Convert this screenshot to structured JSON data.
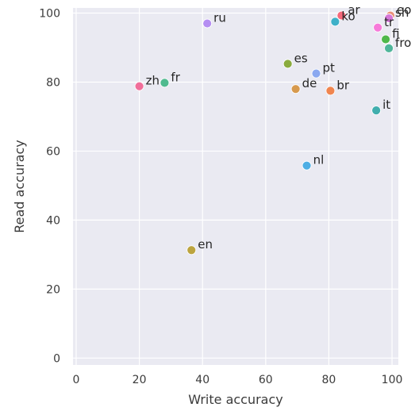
{
  "chart_data": {
    "type": "scatter",
    "xlabel": "Write accuracy",
    "ylabel": "Read accuracy",
    "xlim": [
      -1,
      102
    ],
    "ylim": [
      -2,
      101.5
    ],
    "xticks": [
      0,
      20,
      40,
      60,
      80,
      100
    ],
    "yticks": [
      0,
      20,
      40,
      60,
      80,
      100
    ],
    "grid": true,
    "points": [
      {
        "label": "ar",
        "x": 84.0,
        "y": 99.3,
        "color": "#f5687a"
      },
      {
        "label": "eo",
        "x": 99.5,
        "y": 99.3,
        "color": "#e8907a"
      },
      {
        "label": "sh",
        "x": 99.0,
        "y": 98.5,
        "color": "#d576d8"
      },
      {
        "label": "ru",
        "x": 41.5,
        "y": 97.0,
        "color": "#b58ef2"
      },
      {
        "label": "ko",
        "x": 82.0,
        "y": 97.5,
        "color": "#3eb0c8"
      },
      {
        "label": "tr",
        "x": 95.5,
        "y": 95.8,
        "color": "#f77ad9"
      },
      {
        "label": "fi",
        "x": 98.0,
        "y": 92.4,
        "color": "#4fb84a"
      },
      {
        "label": "fro",
        "x": 99.0,
        "y": 89.8,
        "color": "#4fb59a"
      },
      {
        "label": "es",
        "x": 67.0,
        "y": 85.3,
        "color": "#8aab3e"
      },
      {
        "label": "pt",
        "x": 76.0,
        "y": 82.5,
        "color": "#8aa8f0"
      },
      {
        "label": "zh",
        "x": 20.0,
        "y": 78.8,
        "color": "#f06e9a"
      },
      {
        "label": "fr",
        "x": 28.0,
        "y": 79.8,
        "color": "#4fba8f"
      },
      {
        "label": "de",
        "x": 69.5,
        "y": 78.0,
        "color": "#d79a4e"
      },
      {
        "label": "br",
        "x": 80.5,
        "y": 77.5,
        "color": "#f0854f"
      },
      {
        "label": "it",
        "x": 95.0,
        "y": 71.8,
        "color": "#41aeae"
      },
      {
        "label": "nl",
        "x": 73.0,
        "y": 55.8,
        "color": "#4daee4"
      },
      {
        "label": "en",
        "x": 36.5,
        "y": 31.3,
        "color": "#bca43f"
      }
    ]
  }
}
